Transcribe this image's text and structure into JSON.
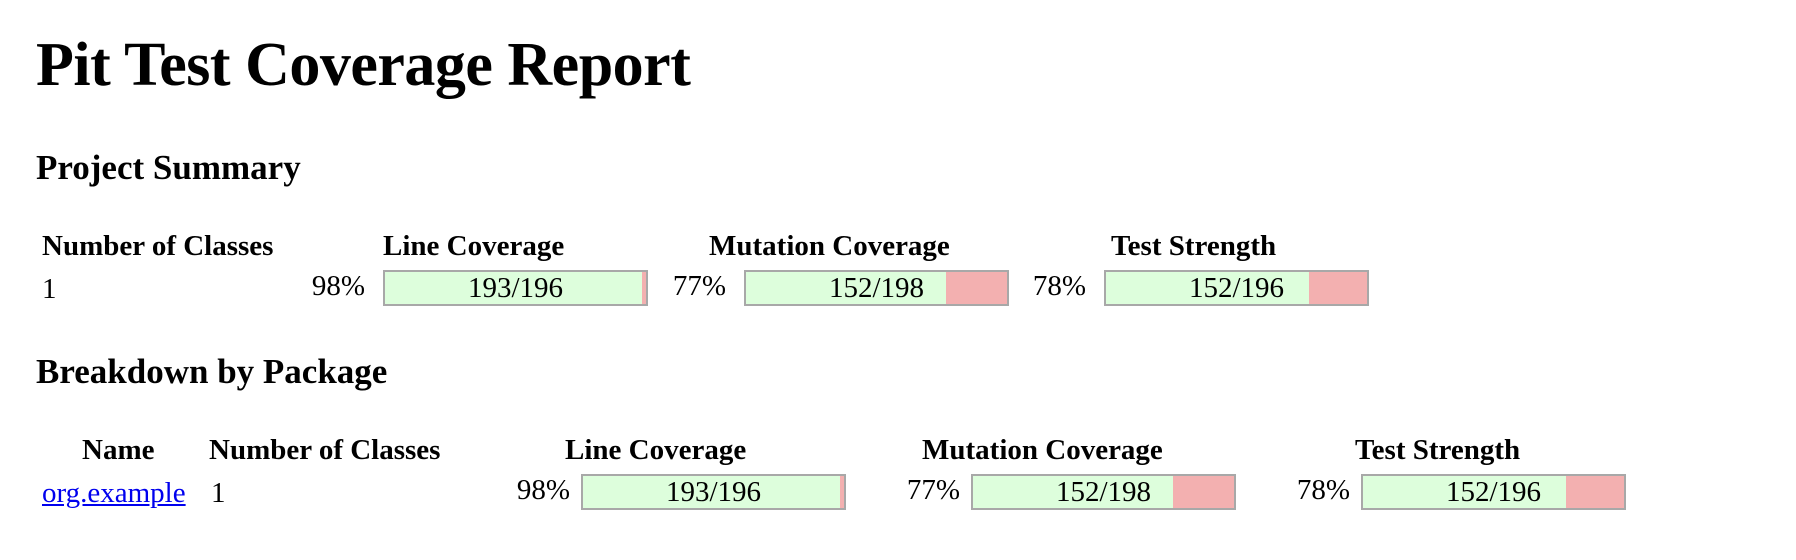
{
  "title": "Pit Test Coverage Report",
  "summary": {
    "heading": "Project Summary",
    "headers": {
      "num_classes": "Number of Classes",
      "line_coverage": "Line Coverage",
      "mutation_coverage": "Mutation Coverage",
      "test_strength": "Test Strength"
    },
    "row": {
      "num_classes": "1",
      "line_pct": "98%",
      "line_ratio": "193/196",
      "line_fraction": 0.985,
      "mutation_pct": "77%",
      "mutation_ratio": "152/198",
      "mutation_fraction": 0.768,
      "strength_pct": "78%",
      "strength_ratio": "152/196",
      "strength_fraction": 0.776
    }
  },
  "breakdown": {
    "heading": "Breakdown by Package",
    "headers": {
      "name": "Name",
      "num_classes": "Number of Classes",
      "line_coverage": "Line Coverage",
      "mutation_coverage": "Mutation Coverage",
      "test_strength": "Test Strength"
    },
    "rows": [
      {
        "name": "org.example",
        "num_classes": "1",
        "line_pct": "98%",
        "line_ratio": "193/196",
        "line_fraction": 0.985,
        "mutation_pct": "77%",
        "mutation_ratio": "152/198",
        "mutation_fraction": 0.768,
        "strength_pct": "78%",
        "strength_ratio": "152/196",
        "strength_fraction": 0.776
      }
    ]
  },
  "colors": {
    "covered": "#ddfedc",
    "uncovered": "#f3b0b0",
    "bar_border": "#a8a8a8",
    "link": "#0000ee"
  }
}
